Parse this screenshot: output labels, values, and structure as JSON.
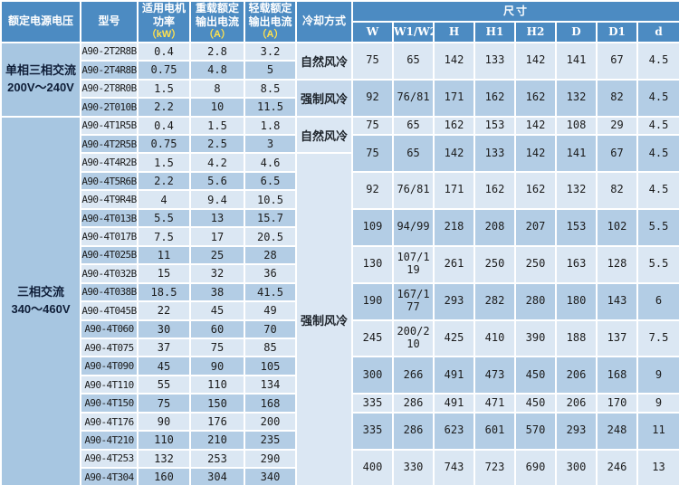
{
  "table": {
    "headers": {
      "voltage": "额定电源电压",
      "model": "型号",
      "power": "适用电机功率",
      "power_unit": "（kW）",
      "heavy": "重载额定输出电流",
      "heavy_unit": "（A）",
      "light": "轻载额定输出电流",
      "light_unit": "（A）",
      "cooling": "冷却方式",
      "dimensions": "尺寸",
      "dim_cols": [
        "W",
        "W1/W2",
        "H",
        "H1",
        "H2",
        "D",
        "D1",
        "d"
      ]
    },
    "voltage_groups": [
      {
        "label": "单相三相交流",
        "range": "200V～240V",
        "rows": 4
      },
      {
        "label": "三相交流",
        "range": "340～460V",
        "rows": 20
      }
    ],
    "cooling_cells": [
      {
        "label": "自然风冷",
        "rows": 2,
        "shade": "light"
      },
      {
        "label": "强制风冷",
        "rows": 2,
        "shade": "med"
      },
      {
        "label": "自然风冷",
        "rows": 2,
        "shade": "light"
      },
      {
        "label": "强制风冷",
        "rows": 18,
        "shade": "light"
      }
    ],
    "rows": [
      {
        "model": "A90-2T2R8B",
        "power": "0.4",
        "heavy": "2.8",
        "light": "3.2"
      },
      {
        "model": "A90-2T4R8B",
        "power": "0.75",
        "heavy": "4.8",
        "light": "5"
      },
      {
        "model": "A90-2T8R0B",
        "power": "1.5",
        "heavy": "8",
        "light": "8.5"
      },
      {
        "model": "A90-2T010B",
        "power": "2.2",
        "heavy": "10",
        "light": "11.5"
      },
      {
        "model": "A90-4T1R5B",
        "power": "0.4",
        "heavy": "1.5",
        "light": "1.8"
      },
      {
        "model": "A90-4T2R5B",
        "power": "0.75",
        "heavy": "2.5",
        "light": "3"
      },
      {
        "model": "A90-4T4R2B",
        "power": "1.5",
        "heavy": "4.2",
        "light": "4.6"
      },
      {
        "model": "A90-4T5R6B",
        "power": "2.2",
        "heavy": "5.6",
        "light": "6.5"
      },
      {
        "model": "A90-4T9R4B",
        "power": "4",
        "heavy": "9.4",
        "light": "10.5"
      },
      {
        "model": "A90-4T013B",
        "power": "5.5",
        "heavy": "13",
        "light": "15.7"
      },
      {
        "model": "A90-4T017B",
        "power": "7.5",
        "heavy": "17",
        "light": "20.5"
      },
      {
        "model": "A90-4T025B",
        "power": "11",
        "heavy": "25",
        "light": "28"
      },
      {
        "model": "A90-4T032B",
        "power": "15",
        "heavy": "32",
        "light": "36"
      },
      {
        "model": "A90-4T038B",
        "power": "18.5",
        "heavy": "38",
        "light": "41.5"
      },
      {
        "model": "A90-4T045B",
        "power": "22",
        "heavy": "45",
        "light": "49"
      },
      {
        "model": "A90-4T060",
        "power": "30",
        "heavy": "60",
        "light": "70"
      },
      {
        "model": "A90-4T075",
        "power": "37",
        "heavy": "75",
        "light": "85"
      },
      {
        "model": "A90-4T090",
        "power": "45",
        "heavy": "90",
        "light": "105"
      },
      {
        "model": "A90-4T110",
        "power": "55",
        "heavy": "110",
        "light": "134"
      },
      {
        "model": "A90-4T150",
        "power": "75",
        "heavy": "150",
        "light": "168"
      },
      {
        "model": "A90-4T176",
        "power": "90",
        "heavy": "176",
        "light": "200"
      },
      {
        "model": "A90-4T210",
        "power": "110",
        "heavy": "210",
        "light": "235"
      },
      {
        "model": "A90-4T253",
        "power": "132",
        "heavy": "253",
        "light": "290"
      },
      {
        "model": "A90-4T304",
        "power": "160",
        "heavy": "304",
        "light": "340"
      }
    ],
    "dim_cells": [
      {
        "rows": 2,
        "values": [
          "75",
          "65",
          "142",
          "133",
          "142",
          "141",
          "67",
          "4.5"
        ]
      },
      {
        "rows": 2,
        "values": [
          "92",
          "76/81",
          "171",
          "162",
          "162",
          "132",
          "82",
          "4.5"
        ]
      },
      {
        "rows": 1,
        "values": [
          "75",
          "65",
          "162",
          "153",
          "142",
          "108",
          "29",
          "4.5"
        ]
      },
      {
        "rows": 2,
        "values": [
          "75",
          "65",
          "142",
          "133",
          "142",
          "141",
          "67",
          "4.5"
        ]
      },
      {
        "rows": 2,
        "values": [
          "92",
          "76/81",
          "171",
          "162",
          "162",
          "132",
          "82",
          "4.5"
        ]
      },
      {
        "rows": 2,
        "values": [
          "109",
          "94/99",
          "218",
          "208",
          "207",
          "153",
          "102",
          "5.5"
        ]
      },
      {
        "rows": 2,
        "values": [
          "130",
          "107/119",
          "261",
          "250",
          "250",
          "163",
          "128",
          "5.5"
        ]
      },
      {
        "rows": 2,
        "values": [
          "190",
          "167/177",
          "293",
          "282",
          "280",
          "180",
          "143",
          "6"
        ]
      },
      {
        "rows": 2,
        "values": [
          "245",
          "200/210",
          "425",
          "410",
          "390",
          "188",
          "137",
          "7.5"
        ]
      },
      {
        "rows": 2,
        "values": [
          "300",
          "266",
          "491",
          "473",
          "450",
          "206",
          "168",
          "9"
        ]
      },
      {
        "rows": 1,
        "values": [
          "335",
          "286",
          "491",
          "471",
          "450",
          "206",
          "170",
          "9"
        ]
      },
      {
        "rows": 2,
        "values": [
          "335",
          "286",
          "623",
          "601",
          "570",
          "293",
          "248",
          "11"
        ]
      },
      {
        "rows": 2,
        "values": [
          "400",
          "330",
          "743",
          "723",
          "690",
          "300",
          "246",
          "13"
        ]
      }
    ],
    "colors": {
      "header_blue": "#4c8bc2",
      "row_light": "#dbe7f3",
      "row_dark": "#b3cde5",
      "voltage_column": "#a7c6e1",
      "unit_text_yellow": "#ffe14d",
      "gridline": "#ffffff"
    }
  }
}
